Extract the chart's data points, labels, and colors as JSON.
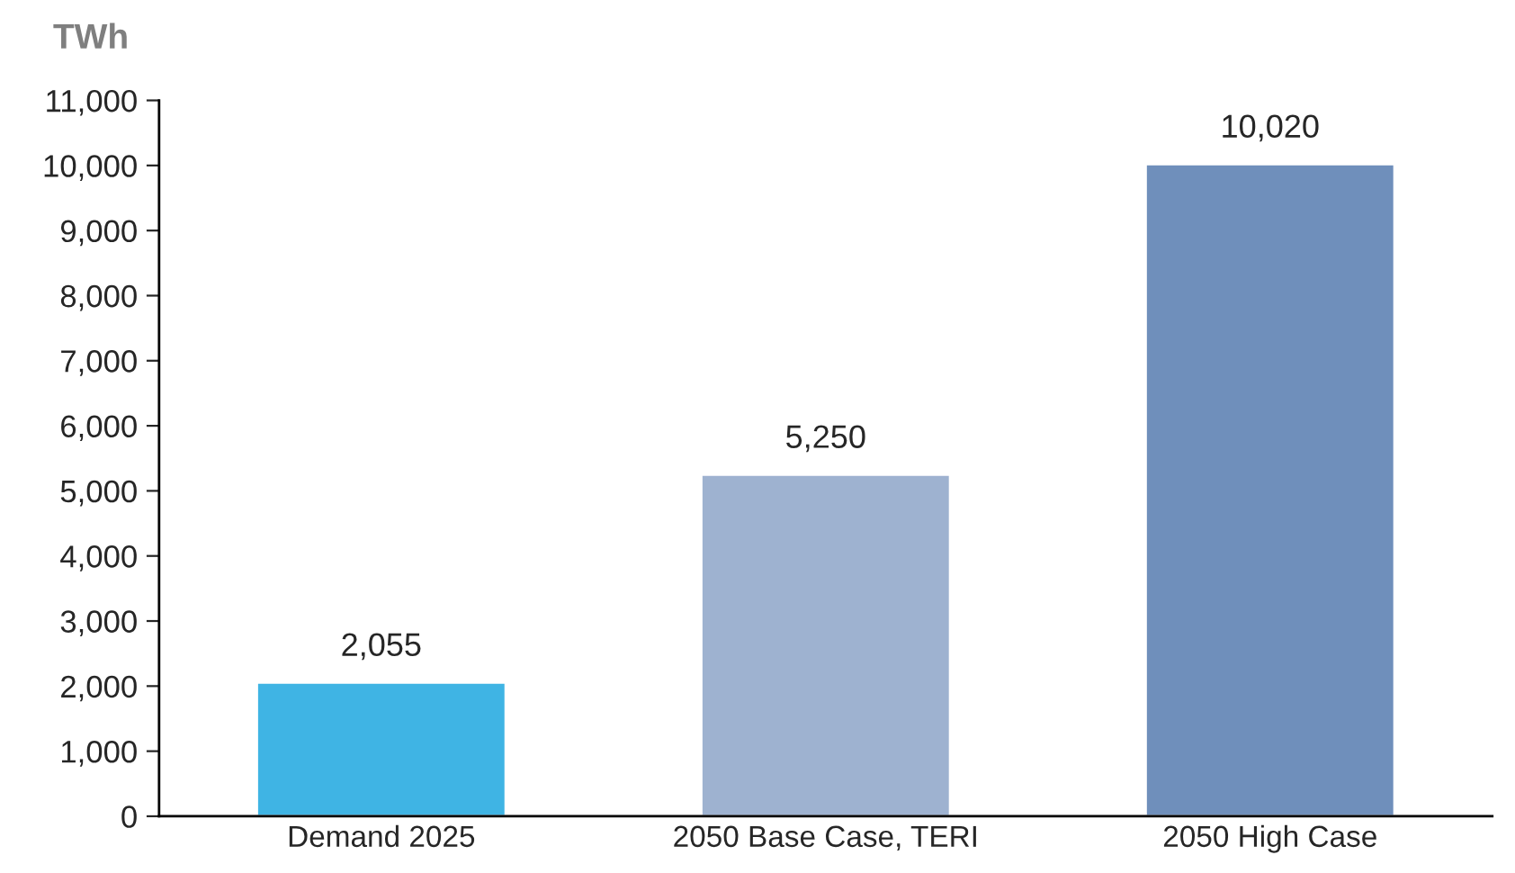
{
  "chart_data": {
    "type": "bar",
    "ylabel": "TWh",
    "categories": [
      "Demand 2025",
      "2050 Base Case, TERI",
      "2050 High Case"
    ],
    "values": [
      2055,
      5250,
      10020
    ],
    "colors": [
      "#3fb4e4",
      "#9eb2d0",
      "#6f8fbb"
    ],
    "value_labels": [
      "2,055",
      "5,250",
      "10,020"
    ],
    "ylim": [
      0,
      11000
    ],
    "yticks": [
      0,
      {
        "value": 1000,
        "label": "1,000"
      },
      {
        "value": 2000,
        "label": "2,000"
      },
      {
        "value": 3000,
        "label": "3,000"
      },
      {
        "value": 4000,
        "label": "4,000"
      },
      {
        "value": 5000,
        "label": "5,000"
      },
      {
        "value": 6000,
        "label": "6,000"
      },
      {
        "value": 7000,
        "label": "7,000"
      },
      {
        "value": 8000,
        "label": "8,000"
      },
      {
        "value": 9000,
        "label": "9,000"
      },
      {
        "value": 10000,
        "label": "10,000"
      },
      {
        "value": 11000,
        "label": "11,000"
      }
    ],
    "grid": false,
    "legend": false
  }
}
